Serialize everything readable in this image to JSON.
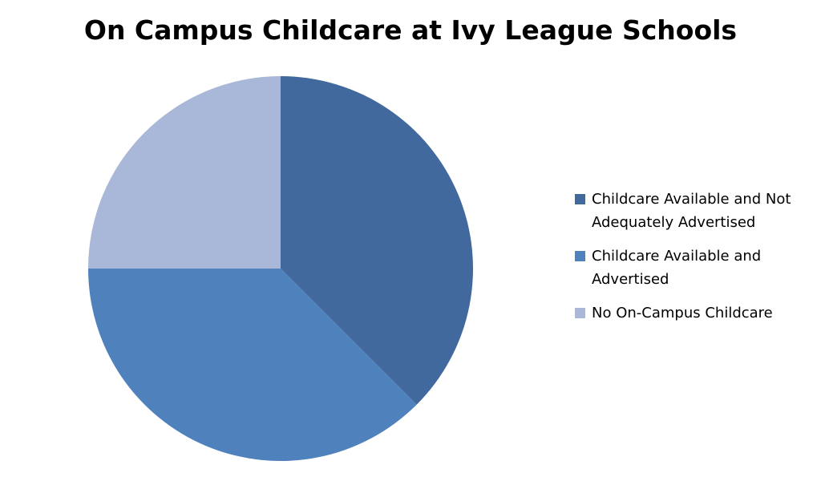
{
  "chart_data": {
    "type": "pie",
    "title": "On Campus Childcare at Ivy League Schools",
    "slices": [
      {
        "label": "Childcare Available and Not Adequately Advertised",
        "value": 3,
        "color": "#41699D"
      },
      {
        "label": "Childcare Available and Advertised",
        "value": 3,
        "color": "#4F81BD"
      },
      {
        "label": "No On-Campus Childcare",
        "value": 2,
        "color": "#A9B8D8"
      }
    ],
    "legend_position": "right"
  }
}
